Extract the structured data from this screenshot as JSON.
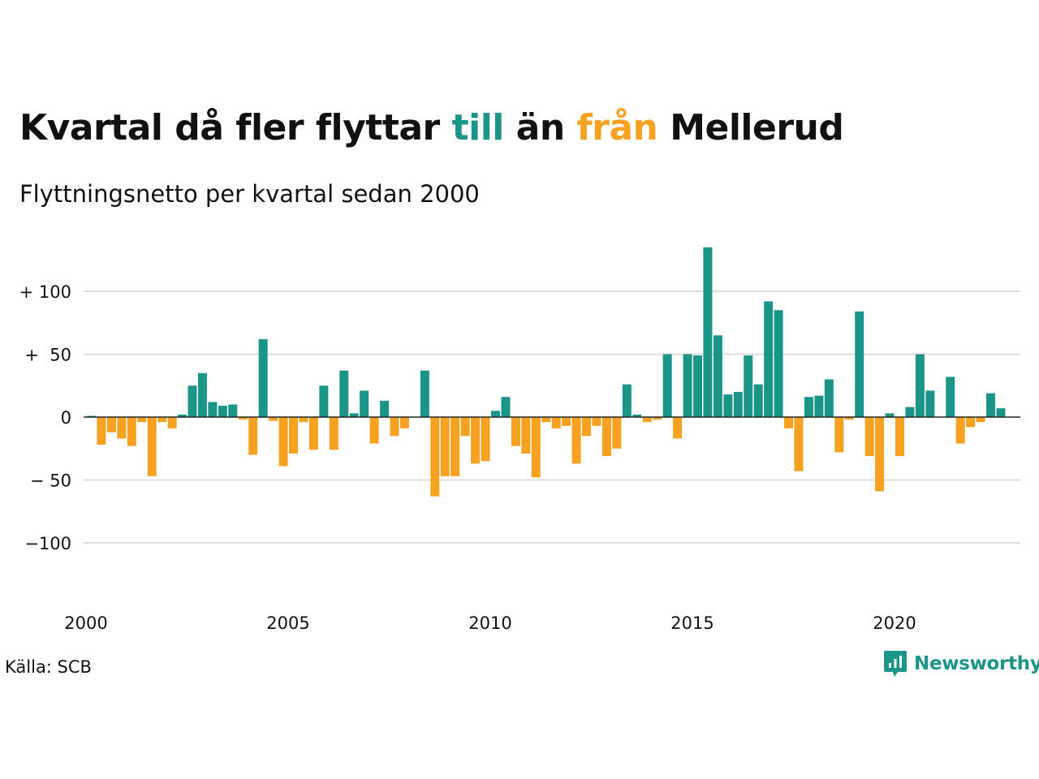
{
  "title": {
    "part1": "Kvartal då fler flyttar ",
    "till": "till",
    "part2": " än ",
    "fran": "från",
    "part3": " Mellerud"
  },
  "subtitle": "Flyttningsnetto per kvartal sedan 2000",
  "source": "Källa: SCB",
  "brand": {
    "name": "Newsworthy",
    "icon": "newsworthy-logo-icon"
  },
  "colors": {
    "positive": "#1a9587",
    "negative": "#f6a11f",
    "grid": "#dddddd"
  },
  "chart_data": {
    "type": "bar",
    "title": "Kvartal då fler flyttar till än från Mellerud",
    "subtitle": "Flyttningsnetto per kvartal sedan 2000",
    "x_start": "2000Q1",
    "x_ticks": [
      {
        "label": "2000",
        "index": 0
      },
      {
        "label": "2005",
        "index": 20
      },
      {
        "label": "2010",
        "index": 40
      },
      {
        "label": "2015",
        "index": 60
      },
      {
        "label": "2020",
        "index": 80
      }
    ],
    "y_ticks": [
      {
        "value": 100,
        "label": "+ 100"
      },
      {
        "value": 50,
        "label": "+  50"
      },
      {
        "value": 0,
        "label": "0"
      },
      {
        "value": -50,
        "label": "− 50"
      },
      {
        "value": -100,
        "label": "−100"
      }
    ],
    "ylim": [
      -150,
      140
    ],
    "grid": true,
    "values": [
      1,
      -22,
      -12,
      -17,
      -23,
      -4,
      -47,
      -4,
      -9,
      2,
      25,
      35,
      12,
      9,
      10,
      -2,
      -30,
      62,
      -3,
      -39,
      -29,
      -4,
      -26,
      25,
      -26,
      37,
      3,
      21,
      -21,
      13,
      -15,
      -9,
      0,
      37,
      -63,
      -47,
      -47,
      -15,
      -37,
      -35,
      5,
      16,
      -23,
      -29,
      -48,
      -4,
      -9,
      -7,
      -37,
      -15,
      -7,
      -31,
      -25,
      26,
      2,
      -4,
      -2,
      50,
      -17,
      50,
      49,
      135,
      65,
      18,
      20,
      49,
      26,
      92,
      85,
      -9,
      -43,
      16,
      17,
      30,
      -28,
      -2,
      84,
      -31,
      -59,
      3,
      -31,
      8,
      50,
      21,
      0,
      32,
      -21,
      -8,
      -4,
      19,
      7
    ]
  }
}
